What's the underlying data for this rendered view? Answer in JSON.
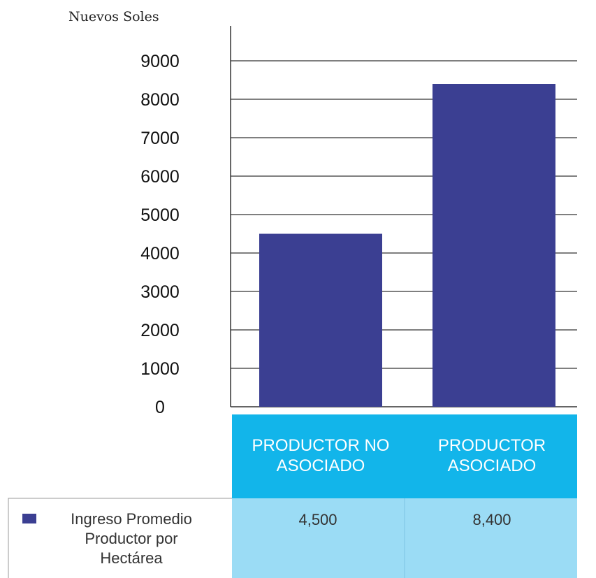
{
  "colors": {
    "bar": "#3b3f92",
    "header_cell": "#12b5ea",
    "value_cell": "#9bdcf5"
  },
  "chart_data": {
    "type": "bar",
    "ylabel": "Nuevos Soles",
    "categories": [
      [
        "PRODUCTOR NO",
        "ASOCIADO"
      ],
      [
        "PRODUCTOR",
        "ASOCIADO"
      ]
    ],
    "series": [
      {
        "name": [
          "Ingreso Promedio",
          "Productor por",
          "Hectárea"
        ],
        "values": [
          4500,
          8400
        ],
        "labels": [
          "4,500",
          "8,400"
        ]
      }
    ],
    "yticks": [
      "0",
      "1000",
      "2000",
      "3000",
      "4000",
      "5000",
      "6000",
      "7000",
      "8000",
      "9000"
    ],
    "ylim": [
      0,
      9000
    ],
    "grid": true,
    "legend": "bottom-left"
  }
}
